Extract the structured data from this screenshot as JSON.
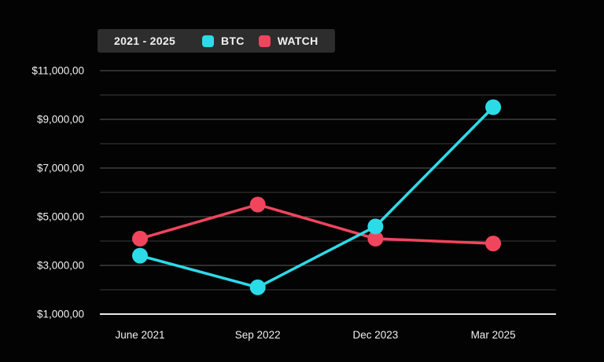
{
  "legend": {
    "period": "2021 - 2025",
    "entries": [
      {
        "label": "BTC",
        "color": "#2cdbe8"
      },
      {
        "label": "WATCH",
        "color": "#f1455e"
      }
    ]
  },
  "chart_data": {
    "type": "line",
    "title": "",
    "categories": [
      "June 2021",
      "Sep 2022",
      "Dec 2023",
      "Mar 2025"
    ],
    "series": [
      {
        "name": "BTC",
        "color": "#2cdbe8",
        "values": [
          3400,
          2100,
          4600,
          9500
        ]
      },
      {
        "name": "WATCH",
        "color": "#f1455e",
        "values": [
          4100,
          5500,
          4100,
          3900
        ]
      }
    ],
    "y_axis": {
      "min": 1000,
      "max": 11000,
      "minor_step": 1000,
      "labeled_step": 2000,
      "tick_labels": [
        "$1,000,00",
        "$3,000,00",
        "$5,000,00",
        "$7,000,00",
        "$9,000,00",
        "$11,000,00"
      ]
    },
    "legend_position": "top-left",
    "grid": true,
    "marker_radius": 10,
    "line_width": 3.5
  },
  "colors": {
    "background": "#030303",
    "legend_background": "#2d2d2d",
    "grid_minor": "#3b3b3b",
    "grid_major": "#5e5e5e",
    "axis_baseline": "#e8e8e8",
    "tick_text": "#f0f0f0"
  }
}
